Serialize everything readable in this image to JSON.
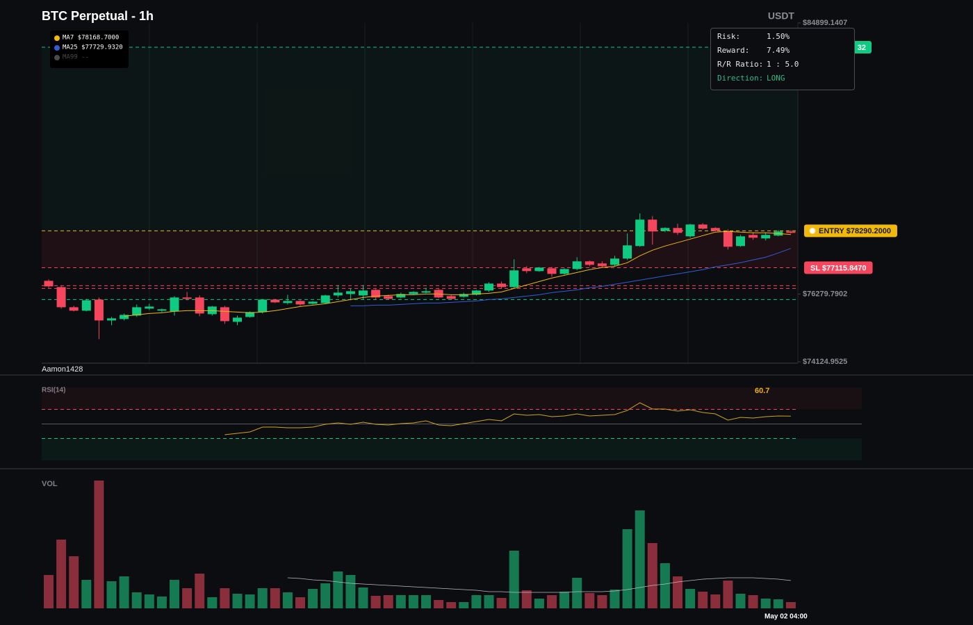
{
  "chart_data": [
    {
      "type": "candlestick",
      "title": "BTC Perpetual - 1h",
      "unit": "USDT",
      "watermark": "Aamon1428",
      "categories": [
        null,
        null,
        null,
        null,
        null,
        null,
        null,
        null,
        null,
        null,
        null,
        null,
        null,
        null,
        null,
        null,
        null,
        null,
        null,
        null,
        null,
        null,
        null,
        null,
        null,
        null,
        null,
        null,
        null,
        null,
        null,
        null,
        null,
        null,
        null,
        null,
        null,
        null,
        null,
        null,
        null,
        null,
        null,
        null,
        null,
        null,
        null,
        null,
        null,
        null,
        null,
        null,
        null,
        null,
        null,
        null,
        null,
        null,
        null,
        "May 02 04:00"
      ],
      "open": [
        76700,
        76501,
        75860,
        75750,
        76103,
        75440,
        75485,
        75595,
        75816,
        75750,
        75728,
        76170,
        76170,
        75639,
        75860,
        75396,
        75551,
        75706,
        76103,
        75993,
        76059,
        75971,
        75993,
        76236,
        76280,
        76236,
        76413,
        76214,
        76170,
        76280,
        76324,
        76413,
        76214,
        76192,
        76258,
        76391,
        76612,
        76501,
        77098,
        77009,
        77098,
        76921,
        77076,
        77319,
        77253,
        77208,
        77407,
        77805,
        78645,
        78291,
        78380,
        78114,
        78490,
        78380,
        78269,
        77805,
        78159,
        78048,
        78137,
        78269
      ],
      "high": [
        76744,
        76545,
        75904,
        76125,
        76170,
        75551,
        75661,
        75949,
        75971,
        75816,
        76214,
        76346,
        76236,
        75904,
        75904,
        75595,
        75728,
        76125,
        76125,
        76258,
        76081,
        76059,
        76258,
        76567,
        76457,
        76567,
        76435,
        76258,
        76324,
        76369,
        76479,
        76435,
        76258,
        76324,
        76413,
        76656,
        76678,
        77385,
        77164,
        77142,
        77142,
        77098,
        77451,
        77341,
        77319,
        77496,
        78203,
        78844,
        78755,
        78402,
        78512,
        78512,
        78534,
        78402,
        78335,
        78159,
        78247,
        78247,
        78313,
        78313
      ],
      "low": [
        76479,
        75816,
        75728,
        75728,
        74844,
        75286,
        75440,
        75551,
        75772,
        75706,
        75595,
        76081,
        75573,
        75595,
        75330,
        75286,
        75529,
        75661,
        75993,
        75949,
        75904,
        75949,
        75971,
        76170,
        76081,
        76103,
        76103,
        76103,
        76148,
        76258,
        76302,
        76148,
        76103,
        76170,
        76236,
        76346,
        76457,
        76457,
        76943,
        76987,
        76833,
        76899,
        77032,
        77164,
        77120,
        77164,
        77363,
        77783,
        77849,
        78247,
        78159,
        78070,
        78335,
        78269,
        77695,
        77783,
        78004,
        77982,
        78114,
        78203
      ],
      "close": [
        76523,
        75860,
        75750,
        76081,
        75440,
        75507,
        75617,
        75860,
        75882,
        75794,
        76170,
        76125,
        75661,
        75882,
        75418,
        75529,
        75706,
        76103,
        76015,
        76059,
        75949,
        76037,
        76236,
        76324,
        76369,
        76391,
        76170,
        76125,
        76280,
        76346,
        76369,
        76170,
        76125,
        76280,
        76391,
        76612,
        76501,
        77032,
        77009,
        77120,
        76921,
        77076,
        77319,
        77208,
        77164,
        77407,
        77827,
        78645,
        78269,
        78380,
        78225,
        78490,
        78358,
        78291,
        77783,
        78114,
        78070,
        78159,
        78269,
        78225
      ],
      "up_color": "#0ecb81",
      "down_color": "#f6465d",
      "series": [
        {
          "name": "MA7 $78168.7000",
          "color": "#f0b90b",
          "values": [
            null,
            null,
            null,
            null,
            null,
            null,
            75573,
            75617,
            75661,
            75683,
            75728,
            75750,
            75750,
            75750,
            75728,
            75706,
            75683,
            75706,
            75750,
            75816,
            75882,
            75927,
            75971,
            76037,
            76103,
            76170,
            76214,
            76236,
            76258,
            76258,
            76280,
            76280,
            76258,
            76258,
            76280,
            76302,
            76346,
            76457,
            76567,
            76678,
            76788,
            76877,
            76965,
            77054,
            77120,
            77164,
            77275,
            77496,
            77672,
            77805,
            77916,
            78026,
            78137,
            78247,
            78269,
            78247,
            78225,
            78225,
            78203,
            78168.7
          ]
        },
        {
          "name": "MA25 $77729.9320",
          "color": "#2f5fd6",
          "values": [
            null,
            null,
            null,
            null,
            null,
            null,
            null,
            null,
            null,
            null,
            null,
            null,
            null,
            null,
            null,
            null,
            null,
            null,
            null,
            null,
            null,
            null,
            null,
            null,
            75904,
            75904,
            75927,
            75927,
            75949,
            75971,
            75993,
            75993,
            76015,
            76037,
            76059,
            76103,
            76125,
            76170,
            76214,
            76258,
            76324,
            76369,
            76413,
            76479,
            76523,
            76590,
            76656,
            76722,
            76788,
            76855,
            76921,
            76987,
            77054,
            77142,
            77208,
            77275,
            77363,
            77451,
            77584,
            77729.932
          ]
        }
      ],
      "inactive_legend": {
        "label": "MA99 --",
        "color": "#4a4a4a"
      },
      "levels": [
        {
          "value": 84125.6,
          "color": "#0ecb81",
          "label": "32"
        },
        {
          "value": 78290.2,
          "color": "#f0b90b",
          "label": "ENTRY $78290.2000"
        },
        {
          "value": 77115.847,
          "color": "#f6465d",
          "label": "SL $77115.8470"
        },
        {
          "value": 76545,
          "color": "#f6465d"
        },
        {
          "value": 76457,
          "color": "#f6465d"
        },
        {
          "value": 76103,
          "color": "#0ecb81"
        }
      ],
      "ylim": [
        74124.9525,
        84899.1407
      ],
      "yticks": [
        {
          "value": 84899.1407,
          "label": "$84899.1407"
        },
        {
          "value": 76279.7902,
          "label": "$76279.7902"
        },
        {
          "value": 74124.9525,
          "label": "$74124.9525"
        }
      ]
    },
    {
      "type": "line",
      "title": "RSI(14)",
      "color": "#d4a21a",
      "values": [
        null,
        null,
        null,
        null,
        null,
        null,
        null,
        null,
        null,
        null,
        null,
        null,
        null,
        null,
        35.2,
        37.1,
        39.0,
        45.7,
        45.7,
        44.8,
        44.8,
        45.7,
        49.5,
        51.4,
        49.5,
        52.4,
        49.5,
        48.6,
        50.5,
        51.4,
        54.3,
        48.6,
        47.6,
        50.5,
        53.3,
        56.2,
        54.3,
        63.8,
        61.9,
        62.9,
        60.0,
        61.0,
        63.8,
        61.0,
        61.9,
        62.9,
        68.6,
        79.0,
        70.5,
        70.5,
        67.6,
        69.5,
        65.7,
        63.8,
        55.2,
        59.0,
        58.1,
        60.0,
        61.0,
        60.7
      ],
      "ylim": [
        0,
        100
      ],
      "levels": [
        {
          "value": 70,
          "color": "#f6465d"
        },
        {
          "value": 50,
          "color": "#555a60"
        },
        {
          "value": 30,
          "color": "#0ecb81"
        }
      ]
    },
    {
      "type": "bar",
      "title": "VOL",
      "up_color": "#157a52",
      "down_color": "#8a2e3b",
      "values": [
        48,
        99,
        75,
        41,
        184,
        39,
        46,
        23,
        20,
        17,
        41,
        29,
        50,
        16,
        29,
        21,
        20,
        29,
        29,
        23,
        16,
        28,
        36,
        53,
        48,
        30,
        18,
        19,
        19,
        19,
        19,
        12,
        9,
        9,
        19,
        19,
        15,
        83,
        26,
        14,
        19,
        24,
        44,
        22,
        19,
        27,
        114,
        141,
        94,
        65,
        46,
        28,
        24,
        20,
        40,
        21,
        19,
        14,
        13,
        9
      ],
      "ma_color": "#b8bcc4",
      "ma_values": [
        null,
        null,
        null,
        null,
        null,
        null,
        null,
        null,
        null,
        null,
        null,
        null,
        null,
        null,
        null,
        null,
        null,
        null,
        null,
        44,
        43,
        41,
        40,
        38,
        36,
        35,
        34,
        33,
        32,
        31,
        30,
        29,
        28,
        27,
        26,
        24,
        24,
        23,
        23,
        23,
        23,
        23,
        24,
        24,
        24,
        25,
        27,
        30,
        33,
        35,
        38,
        40,
        42,
        43,
        44,
        44,
        44,
        43,
        42,
        40
      ],
      "ylim": [
        0,
        200
      ]
    }
  ],
  "risk_panel": {
    "rows": [
      {
        "label": "Risk:",
        "value": "1.50%"
      },
      {
        "label": "Reward:",
        "value": "7.49%"
      },
      {
        "label": "R/R Ratio:",
        "value": "1 : 5.0"
      },
      {
        "label": "Direction:",
        "value": "LONG"
      }
    ]
  }
}
